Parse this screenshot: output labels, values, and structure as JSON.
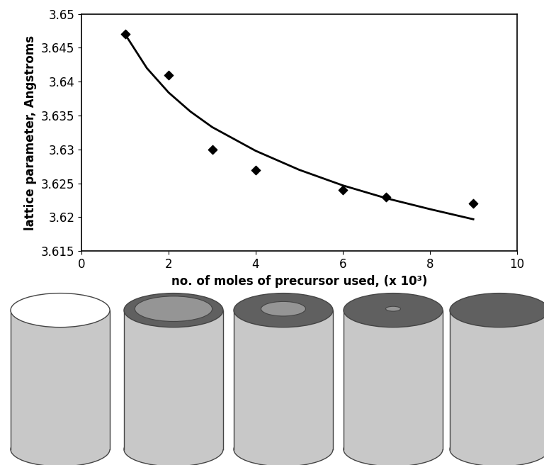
{
  "chart_data": {
    "type": "scatter",
    "x_label": "no. of moles of precursor used, (x 10³)",
    "y_label": "lattice parameter, Angstroms",
    "xlim": [
      0,
      10
    ],
    "xticks": [
      0,
      2,
      4,
      6,
      8,
      10
    ],
    "ylim": [
      3.615,
      3.65
    ],
    "yticks": [
      3.615,
      3.62,
      3.625,
      3.63,
      3.635,
      3.64,
      3.645,
      3.65
    ],
    "grid": false,
    "series": [
      {
        "type": "scatter",
        "marker": "diamond",
        "color": "#000000",
        "x": [
          1,
          2,
          3,
          4,
          6,
          7,
          9
        ],
        "values": [
          3.647,
          3.641,
          3.63,
          3.627,
          3.624,
          3.623,
          3.622
        ]
      },
      {
        "type": "line",
        "line_style": "solid",
        "color": "#000000",
        "x": [
          1,
          1.5,
          2,
          2.5,
          3,
          4,
          5,
          6,
          7,
          8,
          9
        ],
        "values": [
          3.647,
          3.642,
          3.6384,
          3.6356,
          3.6333,
          3.6298,
          3.627,
          3.6247,
          3.6228,
          3.6212,
          3.6197
        ]
      }
    ]
  }
}
